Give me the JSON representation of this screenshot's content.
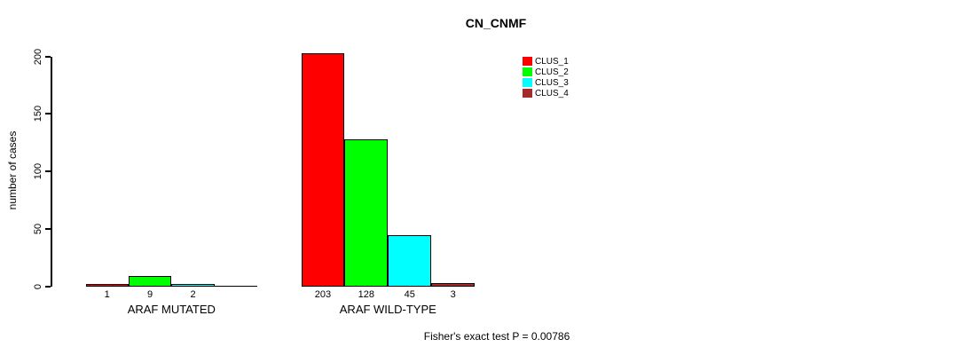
{
  "title": "CN_CNMF",
  "footer": "Fisher's exact test P = 0.00786",
  "chart_data": {
    "type": "bar",
    "title": "CN_CNMF",
    "xlabel": "",
    "ylabel": "number of cases",
    "ylim": [
      0,
      200
    ],
    "yticks": [
      0,
      50,
      100,
      150,
      200
    ],
    "categories": [
      "ARAF MUTATED",
      "ARAF WILD-TYPE"
    ],
    "series": [
      {
        "name": "CLUS_1",
        "color": "#FF0000",
        "values": [
          1,
          203
        ]
      },
      {
        "name": "CLUS_2",
        "color": "#00FF00",
        "values": [
          9,
          128
        ]
      },
      {
        "name": "CLUS_3",
        "color": "#00FFFF",
        "values": [
          2,
          45
        ]
      },
      {
        "name": "CLUS_4",
        "color": "#A52A2A",
        "values": [
          0,
          3
        ]
      }
    ],
    "value_labels": [
      [
        "1",
        "9",
        "2",
        ""
      ],
      [
        "203",
        "128",
        "45",
        "3"
      ]
    ],
    "legend_position": "top-right",
    "grid": false,
    "annotation": "Fisher's exact test P = 0.00786"
  }
}
